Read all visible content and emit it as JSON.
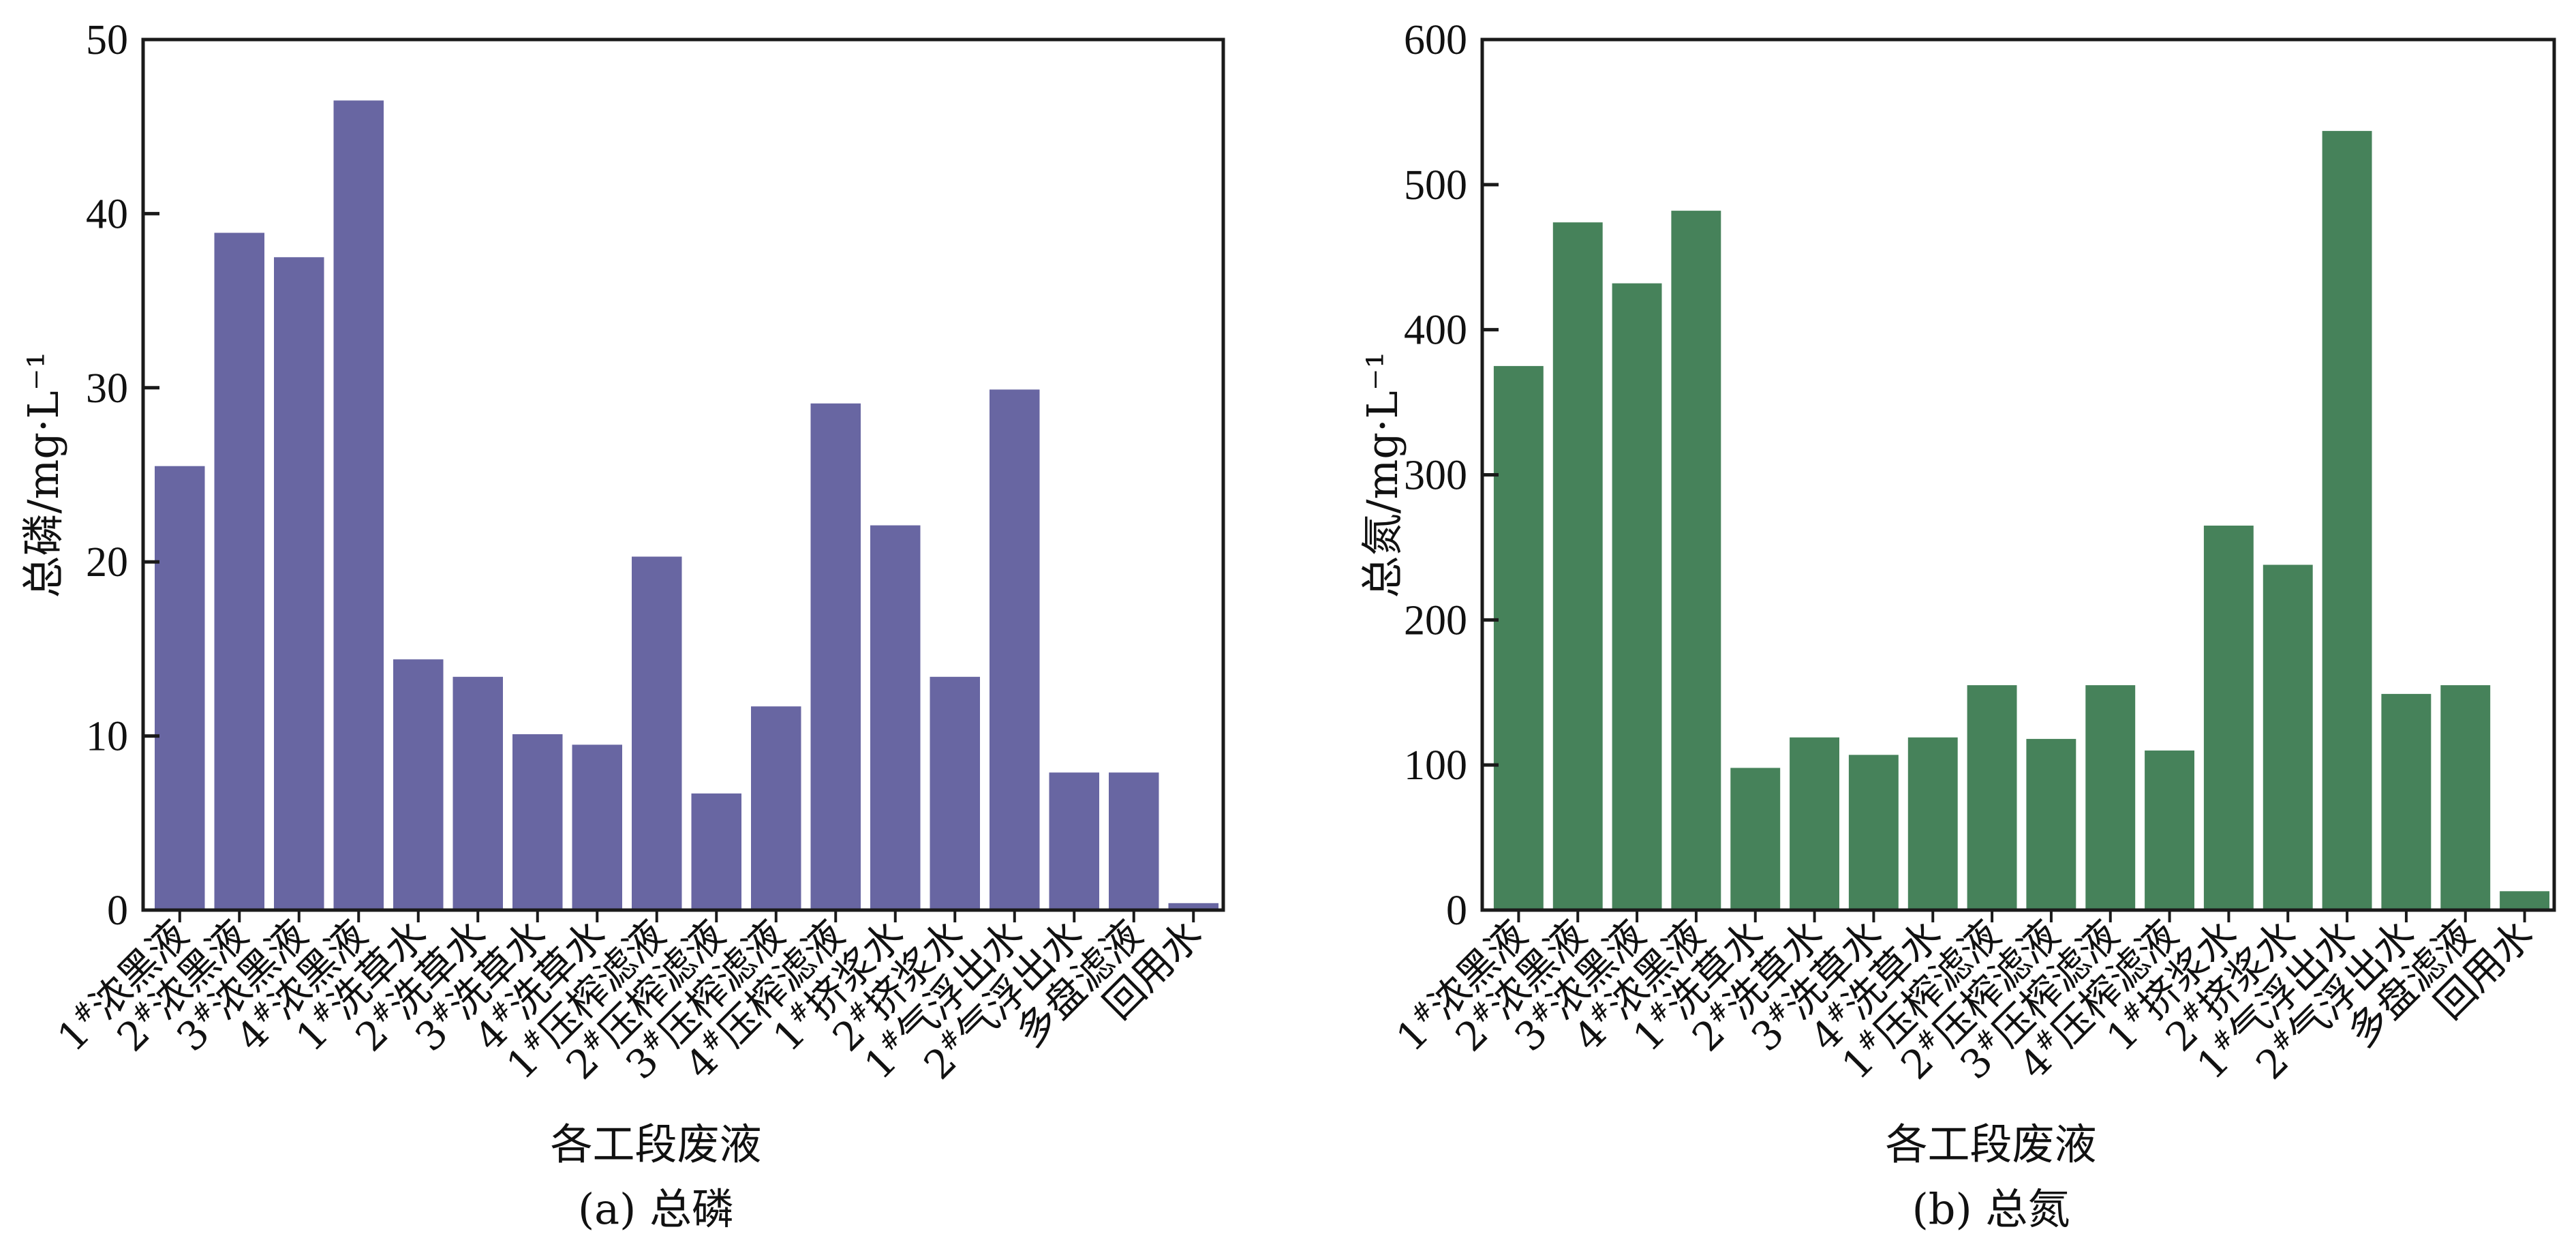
{
  "chart_data": [
    {
      "type": "bar",
      "panel_caption": "(a) 总磷",
      "xlabel": "各工段废液",
      "ylabel": "总磷/mg·L⁻¹",
      "ylim": [
        0,
        50
      ],
      "yticks": [
        0,
        10,
        20,
        30,
        40,
        50
      ],
      "color": "#6866a2",
      "categories": [
        "1#浓黑液",
        "2#浓黑液",
        "3#浓黑液",
        "4#浓黑液",
        "1#洗草水",
        "2#洗草水",
        "3#洗草水",
        "4#洗草水",
        "1#压榨滤液",
        "2#压榨滤液",
        "3#压榨滤液",
        "4#压榨滤液",
        "1#挤浆水",
        "2#挤浆水",
        "1#气浮出水",
        "2#气浮出水",
        "多盘滤液",
        "回用水"
      ],
      "values": [
        25.5,
        38.9,
        37.5,
        46.5,
        14.4,
        13.4,
        10.1,
        9.5,
        20.3,
        6.7,
        11.7,
        29.1,
        22.1,
        13.4,
        29.9,
        7.9,
        7.9,
        0.4
      ]
    },
    {
      "type": "bar",
      "panel_caption": "(b) 总氮",
      "xlabel": "各工段废液",
      "ylabel": "总氮/mg·L⁻¹",
      "ylim": [
        0,
        600
      ],
      "yticks": [
        0,
        100,
        200,
        300,
        400,
        500,
        600
      ],
      "color": "#46825a",
      "categories": [
        "1#浓黑液",
        "2#浓黑液",
        "3#浓黑液",
        "4#浓黑液",
        "1#洗草水",
        "2#洗草水",
        "3#洗草水",
        "4#洗草水",
        "1#压榨滤液",
        "2#压榨滤液",
        "3#压榨滤液",
        "4#压榨滤液",
        "1#挤浆水",
        "2#挤浆水",
        "1#气浮出水",
        "2#气浮出水",
        "多盘滤液",
        "回用水"
      ],
      "values": [
        375,
        474,
        432,
        482,
        98,
        119,
        107,
        119,
        155,
        118,
        155,
        110,
        265,
        238,
        537,
        149,
        155,
        13
      ]
    }
  ]
}
